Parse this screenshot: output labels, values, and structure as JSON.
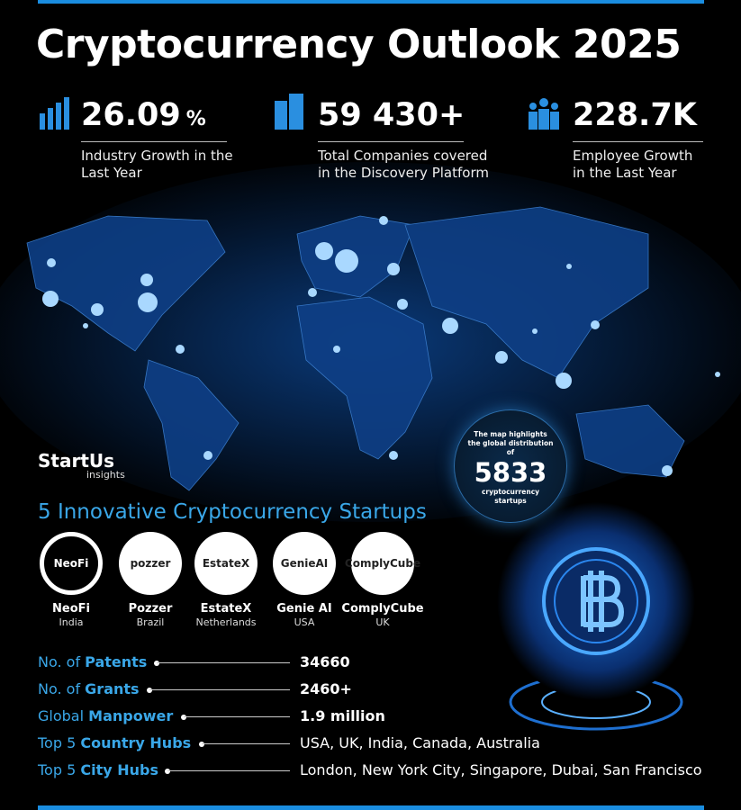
{
  "title": "Cryptocurrency Outlook 2025",
  "stats": [
    {
      "value": "26.09",
      "unit": "%",
      "label": "Industry Growth in the Last Year"
    },
    {
      "value": "59 430+",
      "label": "Total Companies covered in the Discovery Platform"
    },
    {
      "value": "228.7K",
      "label": "Employee Growth in the Last Year"
    }
  ],
  "logo": {
    "name": "StartUs",
    "sub": "insights"
  },
  "map_note": {
    "text": "The map highlights the global distribution of",
    "count": "5833",
    "caption": "cryptocurrency startups"
  },
  "section_title": "5 Innovative Cryptocurrency Startups",
  "startups": [
    {
      "logo": "NeoFi",
      "name": "NeoFi",
      "country": "India"
    },
    {
      "logo": "pozzer",
      "name": "Pozzer",
      "country": "Brazil"
    },
    {
      "logo": "EstateX",
      "name": "EstateX",
      "country": "Netherlands"
    },
    {
      "logo": "GenieAI",
      "name": "Genie AI",
      "country": "USA"
    },
    {
      "logo": "ComplyCube",
      "name": "ComplyCube",
      "country": "UK"
    }
  ],
  "facts": [
    {
      "prefix": "No. of",
      "key": "Patents",
      "value": "34660"
    },
    {
      "prefix": "No. of",
      "key": "Grants",
      "value": "2460+"
    },
    {
      "prefix": "Global",
      "key": "Manpower",
      "value": "1.9 million"
    },
    {
      "prefix": "Top 5",
      "key": "Country Hubs",
      "value": "USA, UK, India, Canada, Australia"
    },
    {
      "prefix": "Top 5",
      "key": "City Hubs",
      "value": "London, New York City, Singapore, Dubai, San Francisco"
    }
  ]
}
